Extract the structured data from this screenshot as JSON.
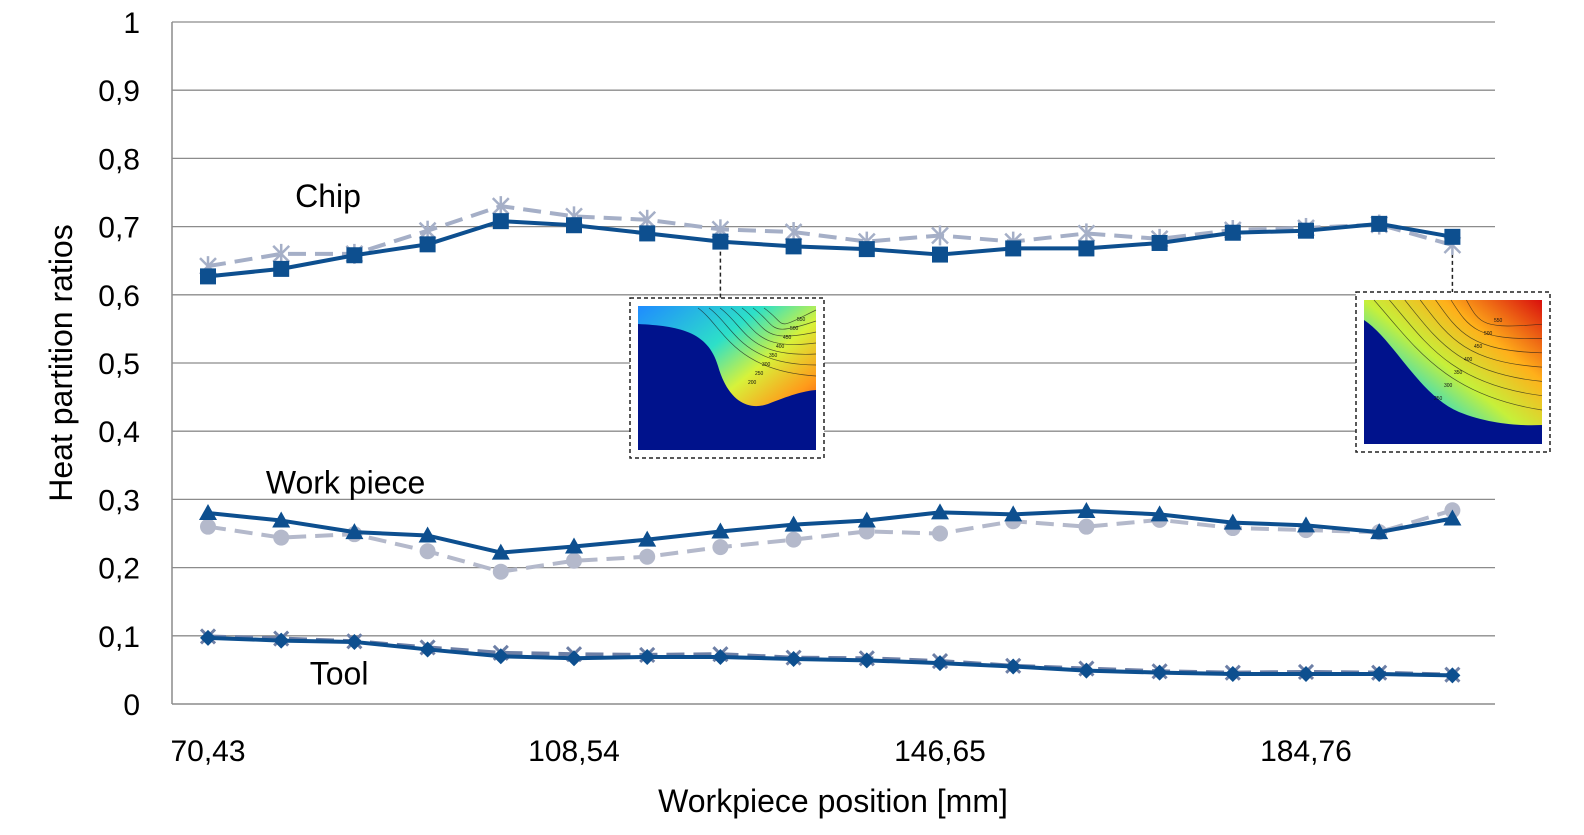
{
  "chart_data": {
    "type": "line",
    "xlabel": "Workpiece position [mm]",
    "ylabel": "Heat partition ratios",
    "ylim": [
      0,
      1
    ],
    "yticks": [
      "0",
      "0,1",
      "0,2",
      "0,3",
      "0,4",
      "0,5",
      "0,6",
      "0,7",
      "0,8",
      "0,9",
      "1"
    ],
    "x_tick_labels": [
      "70,43",
      "108,54",
      "146,65",
      "184,76"
    ],
    "grid": true,
    "series": [
      {
        "group": "Chip",
        "style": "solid",
        "marker": "square",
        "color": "#0D4F8F",
        "values": [
          0.627,
          0.638,
          0.658,
          0.674,
          0.708,
          0.702,
          0.69,
          0.678,
          0.671,
          0.667,
          0.659,
          0.668,
          0.668,
          0.676,
          0.691,
          0.694,
          0.704,
          0.685
        ]
      },
      {
        "group": "Chip",
        "style": "dashed",
        "marker": "asterisk",
        "color": "#A5AFC7",
        "values": [
          0.642,
          0.66,
          0.66,
          0.694,
          0.73,
          0.715,
          0.71,
          0.696,
          0.692,
          0.678,
          0.687,
          0.678,
          0.69,
          0.682,
          0.695,
          0.698,
          0.703,
          0.673
        ]
      },
      {
        "group": "Work piece",
        "style": "solid",
        "marker": "triangle",
        "color": "#0D4F8F",
        "values": [
          0.28,
          0.269,
          0.252,
          0.247,
          0.222,
          0.231,
          0.241,
          0.253,
          0.263,
          0.269,
          0.281,
          0.278,
          0.283,
          0.278,
          0.266,
          0.262,
          0.252,
          0.272
        ]
      },
      {
        "group": "Work piece",
        "style": "dashed",
        "marker": "circle",
        "color": "#B4B9CB",
        "values": [
          0.26,
          0.244,
          0.249,
          0.224,
          0.194,
          0.21,
          0.216,
          0.23,
          0.241,
          0.253,
          0.25,
          0.268,
          0.26,
          0.27,
          0.258,
          0.255,
          0.252,
          0.284
        ]
      },
      {
        "group": "Tool",
        "style": "solid",
        "marker": "diamond",
        "color": "#0D4F8F",
        "values": [
          0.097,
          0.093,
          0.091,
          0.08,
          0.07,
          0.067,
          0.069,
          0.069,
          0.066,
          0.064,
          0.06,
          0.055,
          0.049,
          0.046,
          0.044,
          0.044,
          0.044,
          0.042
        ]
      },
      {
        "group": "Tool",
        "style": "dashed",
        "marker": "x",
        "color": "#6D7FA6",
        "values": [
          0.099,
          0.096,
          0.092,
          0.083,
          0.075,
          0.073,
          0.072,
          0.073,
          0.068,
          0.067,
          0.063,
          0.056,
          0.052,
          0.048,
          0.046,
          0.047,
          0.046,
          0.043
        ]
      }
    ],
    "annotations": [
      {
        "text": "Chip",
        "x_index": 1.6,
        "y": 0.745
      },
      {
        "text": "Work piece",
        "x_index": 1.2,
        "y": 0.325
      },
      {
        "text": "Tool",
        "x_index": 1.8,
        "y": 0.045
      }
    ],
    "insets": [
      {
        "name": "temperature-field-inset-1",
        "x_index": 7,
        "contours": [
          "200",
          "250",
          "300",
          "350",
          "400",
          "450",
          "500",
          "550"
        ]
      },
      {
        "name": "temperature-field-inset-2",
        "x_index": 17,
        "contours": [
          "250",
          "300",
          "350",
          "400",
          "450",
          "500",
          "550"
        ]
      }
    ]
  }
}
